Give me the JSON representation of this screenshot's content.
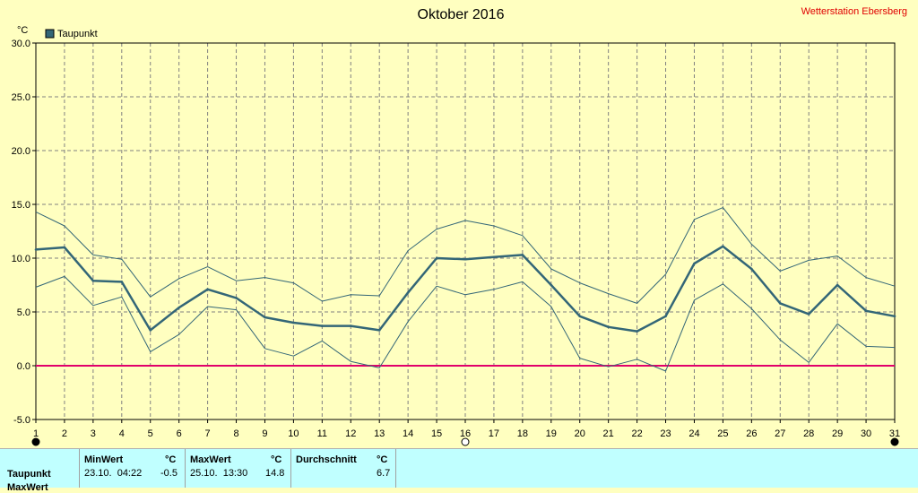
{
  "header": {
    "title": "Oktober 2016",
    "station": "Wetterstation Ebersberg"
  },
  "chart_data": {
    "type": "line",
    "title": "Oktober 2016",
    "ylabel": "°C",
    "xlabel": "",
    "xlim": [
      1,
      31
    ],
    "ylim": [
      -5,
      30
    ],
    "yticks": [
      "30.0",
      "25.0",
      "20.0",
      "15.0",
      "10.0",
      "5.0",
      "0.0",
      "-5.0"
    ],
    "x": [
      1,
      2,
      3,
      4,
      5,
      6,
      7,
      8,
      9,
      10,
      11,
      12,
      13,
      14,
      15,
      16,
      17,
      18,
      19,
      20,
      21,
      22,
      23,
      24,
      25,
      26,
      27,
      28,
      29,
      30,
      31
    ],
    "grid": true,
    "legend_position": "top-left",
    "legend": [
      "Taupunkt"
    ],
    "series": [
      {
        "name": "Taupunkt",
        "role": "mean",
        "color": "#336677",
        "values": [
          10.8,
          11.0,
          7.9,
          7.8,
          3.3,
          5.4,
          7.1,
          6.3,
          4.5,
          4.0,
          3.7,
          3.7,
          3.3,
          6.8,
          10.0,
          9.9,
          10.1,
          10.3,
          7.5,
          4.6,
          3.6,
          3.2,
          4.6,
          9.5,
          11.1,
          9.0,
          5.8,
          4.8,
          7.5,
          5.1,
          4.6
        ]
      },
      {
        "role": "max",
        "color": "#336677",
        "values": [
          14.3,
          13.0,
          10.3,
          9.9,
          6.4,
          8.1,
          9.2,
          7.9,
          8.2,
          7.7,
          6.0,
          6.6,
          6.5,
          10.7,
          12.7,
          13.5,
          13.0,
          12.1,
          9.0,
          7.7,
          6.7,
          5.8,
          8.5,
          13.6,
          14.7,
          11.3,
          8.8,
          9.8,
          10.2,
          8.2,
          7.4
        ]
      },
      {
        "role": "min",
        "color": "#336677",
        "values": [
          7.3,
          8.3,
          5.6,
          6.4,
          1.3,
          2.9,
          5.5,
          5.2,
          1.6,
          0.9,
          2.3,
          0.4,
          -0.2,
          4.1,
          7.4,
          6.6,
          7.1,
          7.8,
          5.5,
          0.7,
          -0.1,
          0.6,
          -0.5,
          6.1,
          7.6,
          5.3,
          2.4,
          0.3,
          3.9,
          1.8,
          1.7
        ]
      }
    ],
    "reference_line": {
      "y": 0,
      "color": "#E0006B"
    }
  },
  "stats": {
    "headers": {
      "min": "MinWert",
      "max": "MaxWert",
      "avg": "Durchschnitt",
      "unit": "°C"
    },
    "rows": [
      {
        "label": "Taupunkt",
        "min_time": "23.10.  04:22",
        "min_value": "-0.5",
        "max_time": "25.10.  13:30",
        "max_value": "14.8",
        "avg_value": "6.7"
      }
    ],
    "partial_row_label": "MaxWert"
  }
}
